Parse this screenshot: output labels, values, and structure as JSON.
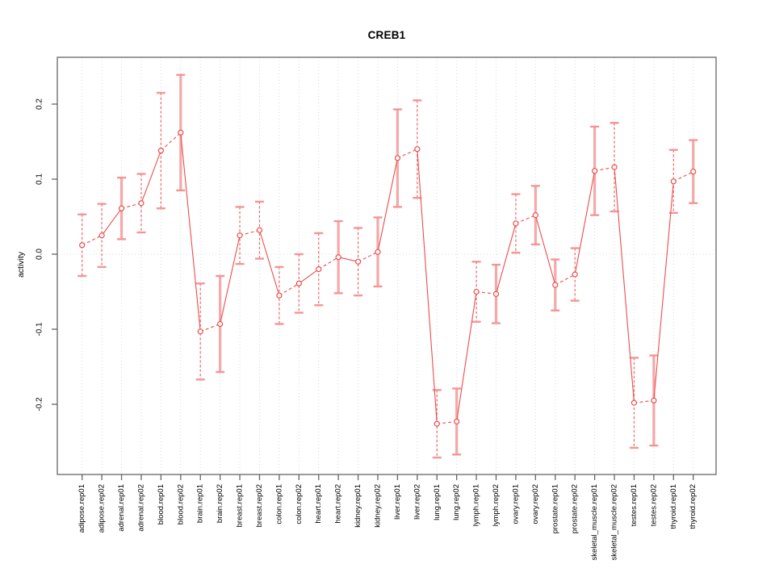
{
  "chart_data": {
    "type": "line",
    "title": "CREB1",
    "ylabel": "activity",
    "xlabel": "",
    "legend_position": "none",
    "grid": {
      "vertical_dotted_per_category": true,
      "horizontal_dotted_at_zero": true
    },
    "ylim": [
      -0.29,
      0.265
    ],
    "yticks": [
      0.2,
      0.1,
      0.0,
      -0.1,
      -0.2
    ],
    "ytick_labels": [
      "0.2",
      "0.1",
      "0.0",
      "-0.1",
      "-0.2"
    ],
    "marker": "open-circle",
    "categories": [
      "adipose.rep01",
      "adipose.rep02",
      "adrenal.rep01",
      "adrenal.rep02",
      "blood.rep01",
      "blood.rep02",
      "brain.rep01",
      "brain.rep02",
      "breast.rep01",
      "breast.rep02",
      "colon.rep01",
      "colon.rep02",
      "heart.rep01",
      "heart.rep02",
      "kidney.rep01",
      "kidney.rep02",
      "liver.rep01",
      "liver.rep02",
      "lung.rep01",
      "lung.rep02",
      "lymph.rep01",
      "lymph.rep02",
      "ovary.rep01",
      "ovary.rep02",
      "prostate.rep01",
      "prostate.rep02",
      "skeletal_muscle.rep01",
      "skeletal_muscle.rep02",
      "testes.rep01",
      "testes.rep02",
      "thyroid.rep01",
      "thyroid.rep02"
    ],
    "series": [
      {
        "name": "CREB1 activity",
        "values": [
          0.012,
          0.025,
          0.061,
          0.068,
          0.138,
          0.162,
          -0.103,
          -0.093,
          0.025,
          0.032,
          -0.055,
          -0.039,
          -0.02,
          -0.004,
          -0.01,
          0.003,
          0.128,
          0.14,
          -0.226,
          -0.223,
          -0.05,
          -0.053,
          0.041,
          0.052,
          -0.041,
          -0.027,
          0.111,
          0.116,
          -0.198,
          -0.195,
          0.097,
          0.11
        ],
        "errors": [
          0.041,
          0.042,
          0.041,
          0.039,
          0.077,
          0.077,
          0.064,
          0.064,
          0.038,
          0.038,
          0.038,
          0.039,
          0.048,
          0.048,
          0.045,
          0.046,
          0.065,
          0.065,
          0.045,
          0.044,
          0.04,
          0.039,
          0.039,
          0.039,
          0.034,
          0.035,
          0.059,
          0.059,
          0.06,
          0.06,
          0.042,
          0.042
        ],
        "error_bar_styles": [
          "dashed",
          "dashed",
          "solid",
          "dashed",
          "dashed",
          "solid",
          "dashed",
          "solid",
          "dashed",
          "dashed",
          "dashed",
          "dashed",
          "dashed",
          "solid",
          "dashed",
          "solid",
          "solid",
          "dashed",
          "dashed",
          "solid",
          "dashed",
          "solid",
          "dashed",
          "solid",
          "solid",
          "dashed",
          "solid",
          "dashed",
          "dashed",
          "solid",
          "dashed",
          "solid"
        ],
        "pair_segments_dashed": true
      }
    ]
  },
  "colors": {
    "line": "#ee4c4c",
    "error_bar_solid": "#f5a4a4",
    "error_bar_cap": "#f59090",
    "grid": "#d9d9d9",
    "axis": "#666666",
    "text": "#000000",
    "background": "#ffffff"
  }
}
